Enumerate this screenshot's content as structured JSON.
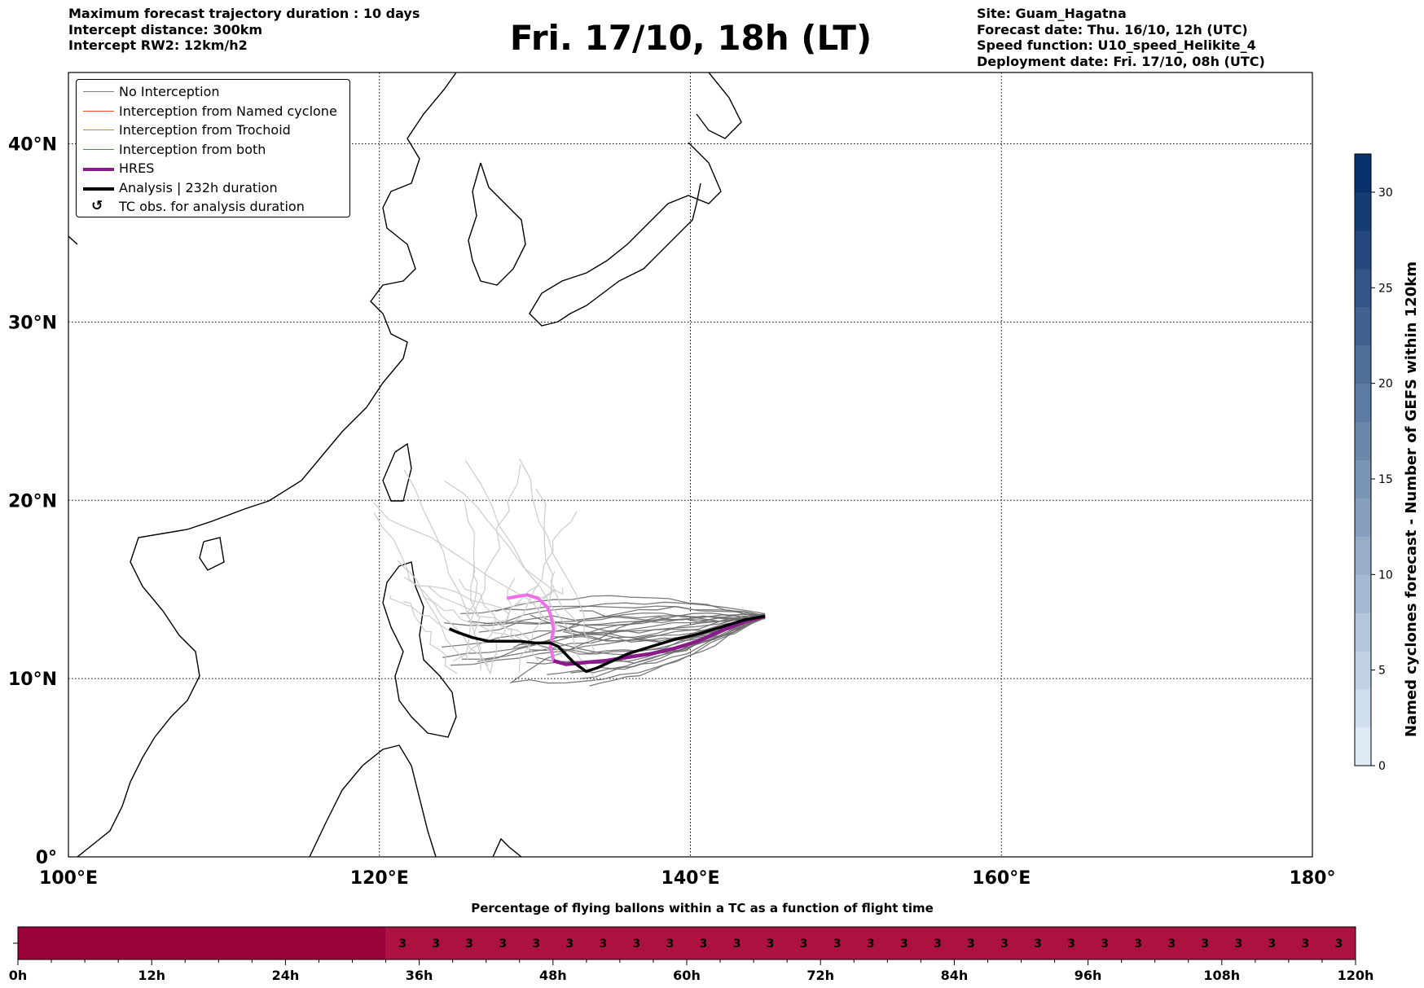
{
  "header": {
    "left_lines": [
      "Maximum forecast trajectory duration : 10 days",
      "Intercept distance: 300km",
      "Intercept RW2: 12km/h2"
    ],
    "title": "Fri. 17/10, 18h (LT)",
    "right_lines": [
      "Site: Guam_Hagatna",
      "Forecast date: Thu. 16/10, 12h (UTC)",
      "Speed function: U10_speed_Helikite_4",
      "Deployment date: Fri. 17/10, 08h (UTC)"
    ]
  },
  "legend": {
    "items": [
      {
        "label": "No Interception",
        "color": "#808080",
        "style": "thin"
      },
      {
        "label": "Interception from Named cyclone",
        "color": "#e8541e",
        "style": "thin"
      },
      {
        "label": "Interception from Trochoid",
        "color": "#9a9a2a",
        "style": "thin"
      },
      {
        "label": "Interception from both",
        "color": "#3a9a3a",
        "style": "thin"
      },
      {
        "label": "HRES",
        "color": "#8b1a8b",
        "style": "thick"
      },
      {
        "label": "Analysis | 232h duration",
        "color": "#000000",
        "style": "thick"
      },
      {
        "label": "TC obs. for analysis duration",
        "color": "#000000",
        "style": "marker",
        "marker": "↺"
      }
    ]
  },
  "chart_data": [
    {
      "type": "line",
      "lon_ticks": [
        "100°E",
        "120°E",
        "140°E",
        "160°E",
        "180°"
      ],
      "lat_ticks": [
        "0°",
        "10°N",
        "20°N",
        "30°N",
        "40°N"
      ],
      "xlim": [
        100,
        180
      ],
      "ylim": [
        0,
        44
      ],
      "grid": true,
      "legend_position": "top-left",
      "series": [
        {
          "name": "HRES",
          "color": "#8b1a8b",
          "lon": [
            144.8,
            143.5,
            142.0,
            140.5,
            139.0,
            137.5,
            136.0,
            134.5,
            133.2,
            132.0,
            131.2,
            131.0,
            131.2,
            131.0,
            130.8,
            130.2,
            129.5,
            128.8,
            128.2
          ],
          "lat": [
            13.5,
            13.2,
            12.7,
            12.1,
            11.7,
            11.4,
            11.2,
            11.0,
            10.9,
            10.8,
            11.0,
            11.8,
            12.8,
            13.6,
            14.0,
            14.5,
            14.7,
            14.6,
            14.5
          ]
        },
        {
          "name": "Analysis | 232h duration",
          "color": "#000000",
          "lon": [
            144.8,
            143.5,
            142.0,
            140.5,
            139.0,
            137.5,
            136.0,
            135.0,
            134.0,
            133.3,
            132.5,
            131.5,
            131.0,
            130.0,
            129.0,
            128.0,
            127.0,
            126.0,
            125.0,
            124.5
          ],
          "lat": [
            13.5,
            13.3,
            12.9,
            12.5,
            12.2,
            11.8,
            11.4,
            11.0,
            10.6,
            10.4,
            10.9,
            11.8,
            12.0,
            12.0,
            12.1,
            12.1,
            12.1,
            12.3,
            12.6,
            12.8
          ]
        }
      ],
      "ensemble_member_count": 30,
      "colorbar": {
        "label": "Named cyclones forecast - Number of GEFS within 120km",
        "ticks": [
          0,
          5,
          10,
          15,
          20,
          25,
          30
        ],
        "range": [
          0,
          32
        ]
      }
    },
    {
      "type": "heatmap",
      "title": "Percentage of flying ballons within a TC as a function of flight time",
      "x_ticks": [
        "0h",
        "12h",
        "24h",
        "36h",
        "48h",
        "60h",
        "72h",
        "84h",
        "96h",
        "108h",
        "120h"
      ],
      "xlim": [
        0,
        120
      ],
      "bin_hours": 3,
      "first_labeled_bin_hour": 33,
      "cell_labels": [
        "3",
        "3",
        "3",
        "3",
        "3",
        "3",
        "3",
        "3",
        "3",
        "3",
        "3",
        "3",
        "3",
        "3",
        "3",
        "3",
        "3",
        "3",
        "3",
        "3",
        "3",
        "3",
        "3",
        "3",
        "3",
        "3",
        "3",
        "3",
        "3"
      ],
      "colors": {
        "empty": "#9a003a",
        "filled": "#ab1240"
      }
    }
  ]
}
